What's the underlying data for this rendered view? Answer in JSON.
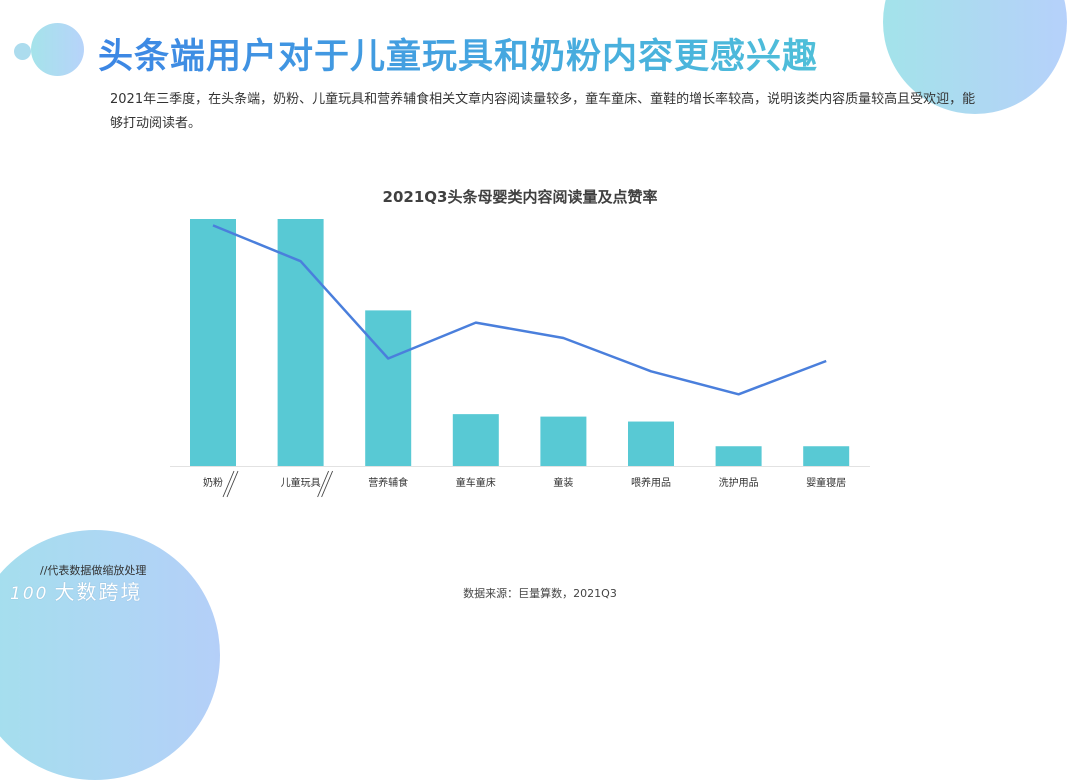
{
  "page": {
    "title": "头条端用户对于儿童玩具和奶粉内容更感兴趣",
    "description": "2021年三季度，在头条端，奶粉、儿童玩具和营养辅食相关文章内容阅读量较多，童车童床、童鞋的增长率较高，说明该类内容质量较高且受欢迎，能够打动阅读者。",
    "note": "//代表数据做缩放处理",
    "brand": "大数跨境",
    "brand_logo": "100",
    "source": "数据来源：巨量算数，2021Q3"
  },
  "colors": {
    "bar": "#58c9d4",
    "line": "#4a7fdc",
    "title_gradient_start": "#3c86e4",
    "title_gradient_end": "#4fbfd9"
  },
  "chart_data": {
    "type": "bar",
    "title": "2021Q3头条母婴类内容阅读量及点赞率",
    "xlabel": "",
    "ylabel": "",
    "grid": false,
    "legend": null,
    "categories": [
      "奶粉",
      "儿童玩具",
      "营养辅食",
      "童车童床",
      "童装",
      "喂养用品",
      "洗护用品",
      "婴童寝居"
    ],
    "axis_break_markers": [
      "奶粉",
      "儿童玩具"
    ],
    "series": [
      {
        "name": "阅读量",
        "type": "bar",
        "values": [
          100,
          100,
          63,
          21,
          20,
          18,
          8,
          8
        ],
        "note": "relative heights; first two bars scaled (//)"
      },
      {
        "name": "点赞率",
        "type": "line",
        "values": [
          94,
          80,
          42,
          56,
          50,
          37,
          28,
          41
        ],
        "note": "relative position, no axis shown"
      }
    ],
    "ylim": [
      0,
      100
    ]
  }
}
